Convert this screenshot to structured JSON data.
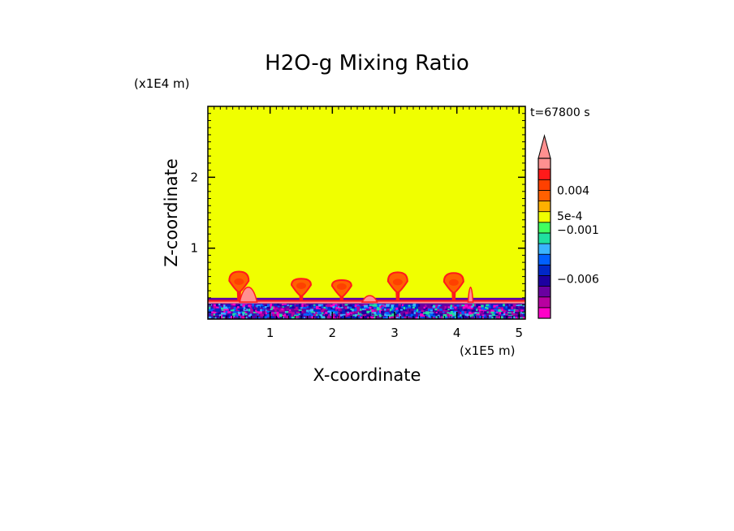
{
  "chart_data": {
    "type": "heatmap",
    "title": "H2O-g Mixing Ratio",
    "xlabel": "X-coordinate",
    "ylabel": "Z-coordinate",
    "x_multiplier": "(x1E5 m)",
    "y_multiplier": "(x1E4 m)",
    "time_label": "t=67800 s",
    "xlim": [
      0,
      5.1
    ],
    "ylim": [
      0,
      3.0
    ],
    "x_ticks": [
      1,
      2,
      3,
      4,
      5
    ],
    "y_ticks": [
      1,
      2
    ],
    "x_tick_labels": [
      "1",
      "2",
      "3",
      "4",
      "5"
    ],
    "y_tick_labels": [
      "1",
      "2"
    ],
    "background_color": "#f0ff00",
    "plumes": [
      {
        "x": 0.5,
        "top": 0.67
      },
      {
        "x": 1.5,
        "top": 0.57
      },
      {
        "x": 2.15,
        "top": 0.55
      },
      {
        "x": 3.05,
        "top": 0.66
      },
      {
        "x": 3.95,
        "top": 0.65
      }
    ],
    "colorbar": {
      "colors": [
        "#ff00c8",
        "#b800a0",
        "#6a00a0",
        "#1c00a0",
        "#0028c8",
        "#0060ff",
        "#3ab4ff",
        "#20e0a0",
        "#40ff60",
        "#f0ff00",
        "#ffb000",
        "#ff6000",
        "#ff4000",
        "#ff1a1a",
        "#ff9090"
      ],
      "labels": [
        {
          "level": 0.004,
          "text": "0.004"
        },
        {
          "level": 0.0005,
          "text": "5e-4"
        },
        {
          "level": -0.001,
          "text": "−0.001"
        },
        {
          "level": -0.006,
          "text": "−0.006"
        }
      ]
    }
  }
}
